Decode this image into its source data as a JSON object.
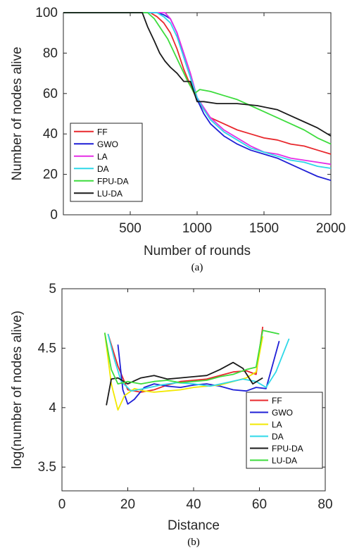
{
  "chart_data": [
    {
      "type": "line",
      "caption": "(a)",
      "xlabel": "Number of rounds",
      "ylabel": "Number of nodes alive",
      "xlim": [
        0,
        2000
      ],
      "ylim": [
        0,
        100
      ],
      "xticks": [
        500,
        1000,
        1500,
        2000
      ],
      "yticks": [
        0,
        20,
        40,
        60,
        80,
        100
      ],
      "grid": false,
      "legend": "bottom-left",
      "series": [
        {
          "name": "FF",
          "color": "#e8282d",
          "x": [
            0,
            650,
            700,
            750,
            800,
            850,
            900,
            950,
            1000,
            1050,
            1100,
            1200,
            1300,
            1400,
            1500,
            1600,
            1700,
            1800,
            1900,
            2000
          ],
          "y": [
            100,
            100,
            98,
            95,
            90,
            82,
            72,
            64,
            57,
            52,
            48,
            45,
            42,
            40,
            38,
            37,
            35,
            34,
            32,
            30
          ]
        },
        {
          "name": "GWO",
          "color": "#1f1fd6",
          "x": [
            0,
            700,
            750,
            800,
            850,
            900,
            950,
            1000,
            1050,
            1100,
            1200,
            1300,
            1400,
            1500,
            1600,
            1700,
            1800,
            1900,
            2000
          ],
          "y": [
            100,
            100,
            99,
            97,
            90,
            78,
            68,
            57,
            50,
            45,
            39,
            35,
            32,
            30,
            28,
            25,
            22,
            19,
            17
          ]
        },
        {
          "name": "LA",
          "color": "#e52ee5",
          "x": [
            0,
            760,
            800,
            850,
            900,
            950,
            1000,
            1050,
            1100,
            1200,
            1300,
            1400,
            1500,
            1600,
            1700,
            1800,
            1900,
            2000
          ],
          "y": [
            100,
            100,
            97,
            90,
            80,
            70,
            58,
            53,
            48,
            42,
            38,
            34,
            31,
            30,
            28,
            27,
            26,
            25
          ]
        },
        {
          "name": "DA",
          "color": "#2ed8e8",
          "x": [
            0,
            700,
            750,
            800,
            850,
            900,
            950,
            1000,
            1050,
            1100,
            1200,
            1300,
            1400,
            1500,
            1600,
            1700,
            1800,
            1900,
            2000
          ],
          "y": [
            100,
            100,
            98,
            95,
            88,
            78,
            68,
            58,
            52,
            47,
            41,
            37,
            33,
            31,
            29,
            27,
            26,
            24,
            23
          ]
        },
        {
          "name": "FPU-DA",
          "color": "#3ddc3d",
          "x": [
            0,
            630,
            680,
            730,
            780,
            830,
            880,
            930,
            980,
            1020,
            1100,
            1200,
            1300,
            1400,
            1500,
            1600,
            1700,
            1800,
            1900,
            2000
          ],
          "y": [
            100,
            100,
            97,
            92,
            87,
            80,
            73,
            66,
            60,
            62,
            61,
            59,
            57,
            54,
            51,
            48,
            45,
            42,
            38,
            35
          ]
        },
        {
          "name": "LU-DA",
          "color": "#1a1a1a",
          "x": [
            0,
            590,
            630,
            680,
            720,
            760,
            800,
            850,
            900,
            950,
            1000,
            1050,
            1150,
            1300,
            1450,
            1600,
            1700,
            1800,
            1900,
            2000
          ],
          "y": [
            100,
            100,
            93,
            86,
            80,
            76,
            73,
            70,
            66,
            66,
            56,
            56,
            55,
            55,
            54,
            52,
            49,
            46,
            43,
            39
          ]
        }
      ]
    },
    {
      "type": "line",
      "caption": "(b)",
      "xlabel": "Distance",
      "ylabel": "log(number of nodes alive)",
      "xlim": [
        0,
        80
      ],
      "ylim": [
        3.3,
        5
      ],
      "xticks": [
        0,
        20,
        40,
        60,
        80
      ],
      "yticks": [
        3.5,
        4,
        4.5,
        5
      ],
      "grid": false,
      "legend": "bottom-right",
      "series": [
        {
          "name": "FF",
          "color": "#e8282d",
          "x": [
            14,
            17,
            20,
            24,
            28,
            32,
            36,
            40,
            44,
            48,
            52,
            56,
            59,
            61
          ],
          "y": [
            4.62,
            4.35,
            4.15,
            4.13,
            4.15,
            4.19,
            4.22,
            4.23,
            4.24,
            4.27,
            4.3,
            4.31,
            4.28,
            4.68
          ]
        },
        {
          "name": "GWO",
          "color": "#1f1fd6",
          "x": [
            17,
            18.5,
            20,
            22,
            25,
            28,
            32,
            36,
            40,
            44,
            48,
            52,
            56,
            59,
            62,
            66
          ],
          "y": [
            4.53,
            4.15,
            4.03,
            4.07,
            4.17,
            4.2,
            4.18,
            4.17,
            4.19,
            4.2,
            4.18,
            4.15,
            4.14,
            4.17,
            4.16,
            4.56
          ]
        },
        {
          "name": "LA",
          "color": "#f2e800",
          "x": [
            13,
            15,
            17,
            19,
            22,
            25,
            28,
            32,
            36,
            40,
            44,
            48,
            52,
            56,
            59,
            61
          ],
          "y": [
            4.63,
            4.2,
            3.98,
            4.1,
            4.16,
            4.14,
            4.13,
            4.14,
            4.15,
            4.17,
            4.18,
            4.19,
            4.22,
            4.25,
            4.3,
            4.6
          ]
        },
        {
          "name": "DA",
          "color": "#2ed8e8",
          "x": [
            14,
            16,
            18,
            21,
            25,
            30,
            35,
            40,
            45,
            50,
            55,
            59,
            62,
            65,
            69
          ],
          "y": [
            4.62,
            4.4,
            4.22,
            4.14,
            4.16,
            4.19,
            4.21,
            4.2,
            4.18,
            4.21,
            4.24,
            4.22,
            4.17,
            4.3,
            4.58
          ]
        },
        {
          "name": "FPU-DA",
          "color": "#1a1a1a",
          "x": [
            13.5,
            15,
            17,
            20,
            24,
            28,
            32,
            36,
            40,
            44,
            48,
            52,
            55,
            58,
            61
          ],
          "y": [
            4.02,
            4.24,
            4.25,
            4.2,
            4.25,
            4.27,
            4.24,
            4.25,
            4.26,
            4.27,
            4.32,
            4.38,
            4.33,
            4.2,
            4.25
          ]
        },
        {
          "name": "LU-DA",
          "color": "#3ddc3d",
          "x": [
            13,
            15,
            17,
            20,
            24,
            28,
            32,
            36,
            40,
            44,
            48,
            52,
            56,
            59,
            61,
            66
          ],
          "y": [
            4.63,
            4.32,
            4.2,
            4.22,
            4.2,
            4.22,
            4.23,
            4.21,
            4.22,
            4.23,
            4.26,
            4.28,
            4.32,
            4.34,
            4.65,
            4.62
          ]
        }
      ]
    }
  ]
}
